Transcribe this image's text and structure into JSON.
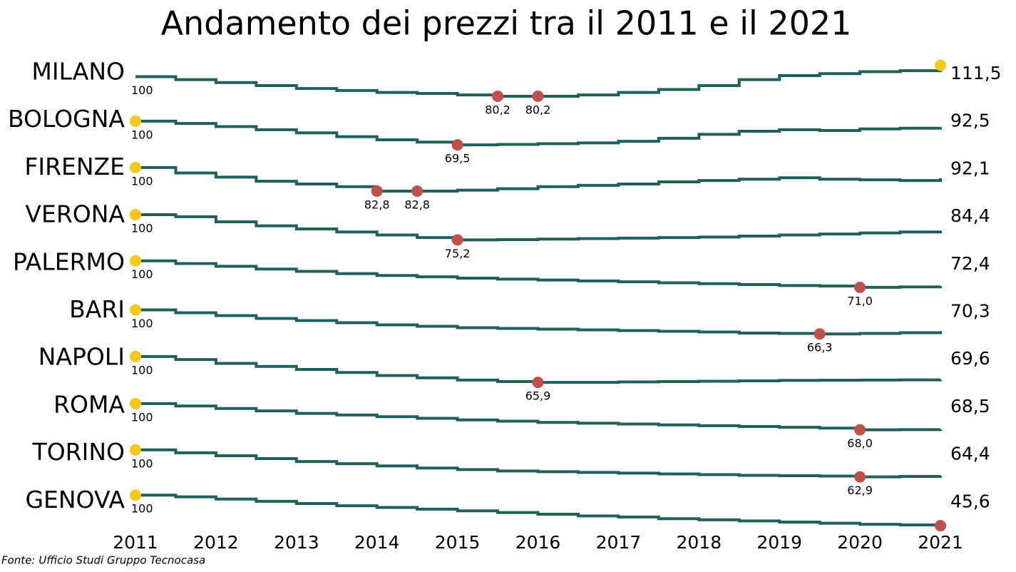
{
  "chart_data": {
    "type": "step",
    "title": "Andamento dei prezzi tra il 2011 e il 2021",
    "source": "Fonte: Ufficio Studi Gruppo Tecnocasa",
    "x": [
      2011,
      2011.5,
      2012,
      2012.5,
      2013,
      2013.5,
      2014,
      2014.5,
      2015,
      2015.5,
      2016,
      2016.5,
      2017,
      2017.5,
      2018,
      2018.5,
      2019,
      2019.5,
      2020,
      2020.5,
      2021
    ],
    "xlim": [
      2011,
      2021
    ],
    "xticks": [
      2011,
      2012,
      2013,
      2014,
      2015,
      2016,
      2017,
      2018,
      2019,
      2020,
      2021
    ],
    "line_color": "#1f605b",
    "max_color": "#f2c81a",
    "min_color": "#c0504d",
    "series": [
      {
        "name": "MILANO",
        "ylim": [
          78,
          114
        ],
        "values": [
          100,
          97,
          94,
          91,
          88,
          86,
          84,
          83,
          81.5,
          80.2,
          80.2,
          81.5,
          84,
          87,
          91,
          97,
          101,
          103,
          105,
          106,
          111.5
        ],
        "value_labels": [
          "100",
          null,
          null,
          null,
          null,
          null,
          null,
          null,
          null,
          "80,2",
          "80,2",
          null,
          null,
          null,
          null,
          null,
          null,
          null,
          null,
          null,
          "111,5"
        ]
      },
      {
        "name": "BOLOGNA",
        "ylim": [
          68,
          114
        ],
        "values": [
          100,
          97,
          93,
          89,
          85,
          80,
          76,
          73,
          69.5,
          70,
          71,
          72,
          74,
          78,
          83,
          87,
          89,
          88,
          90,
          91,
          92.5
        ],
        "value_labels": [
          "100",
          null,
          null,
          null,
          null,
          null,
          null,
          null,
          "69,5",
          null,
          null,
          null,
          null,
          null,
          null,
          null,
          null,
          null,
          null,
          null,
          "92,5"
        ]
      },
      {
        "name": "FIRENZE",
        "ylim": [
          81,
          107
        ],
        "values": [
          100,
          96,
          93,
          90,
          88,
          86,
          82.8,
          82.8,
          83.5,
          84.5,
          86,
          87,
          88,
          89.5,
          90.5,
          91.5,
          92.5,
          91.5,
          91,
          90.5,
          92.1
        ],
        "value_labels": [
          "100",
          null,
          null,
          null,
          null,
          null,
          "82,8",
          "82,8",
          null,
          null,
          null,
          null,
          null,
          null,
          null,
          null,
          null,
          null,
          null,
          null,
          "92,1"
        ]
      },
      {
        "name": "VERONA",
        "ylim": [
          74,
          109
        ],
        "values": [
          100,
          98,
          93,
          89,
          86,
          83,
          80,
          77.5,
          75.2,
          75.5,
          76,
          76.5,
          77,
          77.5,
          78,
          79,
          80,
          81,
          82,
          83,
          84.4
        ],
        "value_labels": [
          "100",
          null,
          null,
          null,
          null,
          null,
          null,
          null,
          "75,2",
          null,
          null,
          null,
          null,
          null,
          null,
          null,
          null,
          null,
          null,
          null,
          "84,4"
        ]
      },
      {
        "name": "PALERMO",
        "ylim": [
          69.5,
          108.5
        ],
        "values": [
          100,
          97,
          94,
          91,
          88.5,
          86,
          84,
          82.5,
          81,
          80,
          79,
          78,
          77,
          76,
          75,
          74,
          73,
          72.5,
          71.0,
          71.5,
          72.4
        ],
        "value_labels": [
          "100",
          null,
          null,
          null,
          null,
          null,
          null,
          null,
          null,
          null,
          null,
          null,
          null,
          null,
          null,
          null,
          null,
          null,
          "71,0",
          null,
          "72,4"
        ]
      },
      {
        "name": "BARI",
        "ylim": [
          63,
          113
        ],
        "values": [
          100,
          96,
          92,
          88,
          85,
          82,
          79,
          77,
          75,
          74,
          73,
          72,
          71,
          70,
          69,
          67.5,
          67,
          66.3,
          67,
          68,
          70.3
        ],
        "value_labels": [
          "100",
          null,
          null,
          null,
          null,
          null,
          null,
          null,
          null,
          null,
          null,
          null,
          null,
          null,
          null,
          null,
          null,
          "66,3",
          null,
          null,
          "70,3"
        ]
      },
      {
        "name": "NAPOLI",
        "ylim": [
          64,
          111
        ],
        "values": [
          100,
          96,
          91,
          87,
          83,
          79,
          75,
          72,
          69,
          67,
          65.9,
          66,
          66.5,
          67,
          67.5,
          68,
          68.5,
          68.8,
          69,
          69.2,
          69.6
        ],
        "value_labels": [
          "100",
          null,
          null,
          null,
          null,
          null,
          null,
          null,
          null,
          null,
          "65,9",
          null,
          null,
          null,
          null,
          null,
          null,
          null,
          null,
          null,
          "69,6"
        ]
      },
      {
        "name": "ROMA",
        "ylim": [
          66,
          109.5
        ],
        "values": [
          100,
          97,
          94,
          91,
          88,
          86,
          84,
          82,
          80,
          78.5,
          77,
          76,
          75,
          74,
          73,
          72,
          71,
          70,
          68.0,
          68.2,
          68.5
        ],
        "value_labels": [
          "100",
          null,
          null,
          null,
          null,
          null,
          null,
          null,
          null,
          null,
          null,
          null,
          null,
          null,
          null,
          null,
          null,
          null,
          "68,0",
          null,
          "68,5"
        ]
      },
      {
        "name": "TORINO",
        "ylim": [
          60,
          109
        ],
        "values": [
          100,
          96,
          92,
          88,
          84,
          81,
          78,
          75,
          73,
          71,
          70,
          69,
          68,
          67,
          66,
          65,
          64.5,
          64,
          62.9,
          63.5,
          64.4
        ],
        "value_labels": [
          "100",
          null,
          null,
          null,
          null,
          null,
          null,
          null,
          null,
          null,
          null,
          null,
          null,
          null,
          null,
          null,
          null,
          null,
          "62,9",
          null,
          "64,4"
        ]
      },
      {
        "name": "GENOVA",
        "ylim": [
          44,
          107.5
        ],
        "values": [
          100,
          97,
          93,
          89,
          85,
          81,
          78,
          75,
          72,
          69,
          66,
          63,
          61,
          58,
          56,
          54,
          52,
          50,
          48,
          47,
          45.6
        ],
        "value_labels": [
          "100",
          null,
          null,
          null,
          null,
          null,
          null,
          null,
          null,
          null,
          null,
          null,
          null,
          null,
          null,
          null,
          null,
          null,
          null,
          null,
          "45,6"
        ]
      }
    ]
  }
}
